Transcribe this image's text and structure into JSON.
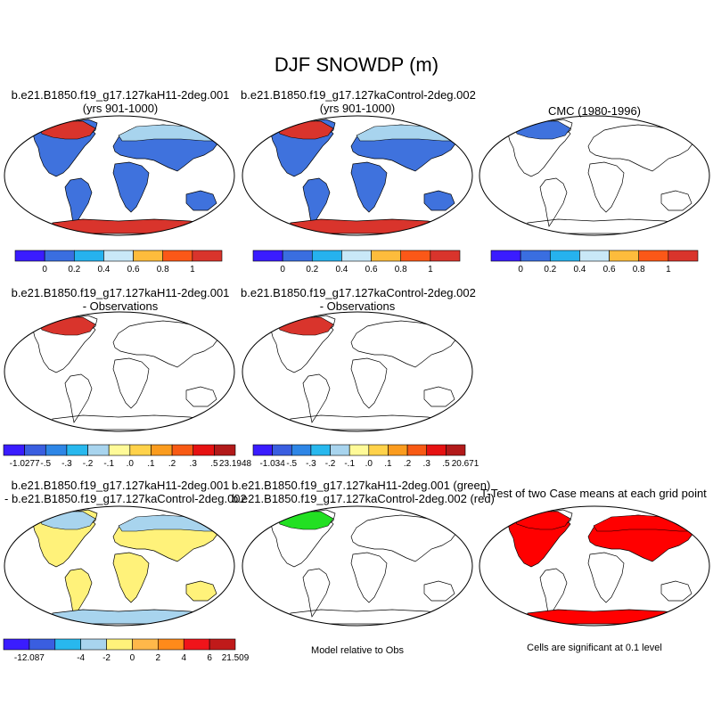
{
  "figure": {
    "title": "DJF SNOWDP (m)"
  },
  "palettes": {
    "mean": [
      "#3a1cff",
      "#3a6ee0",
      "#26b2ee",
      "#c9e8f7",
      "#fdbc3c",
      "#fb5818",
      "#d9342c"
    ],
    "diff": [
      "#3a1cff",
      "#3a5ee0",
      "#2e86e6",
      "#28b8ee",
      "#a8d4ee",
      "#fffa98",
      "#ffd24a",
      "#fb9c1e",
      "#f85a14",
      "#e61212",
      "#b21a1a"
    ],
    "diff3": [
      "#3a1cff",
      "#3a5ee0",
      "#28b8ee",
      "#a8d4ee",
      "#fff27a",
      "#ffb84a",
      "#ff8a1a",
      "#f0141a",
      "#c01a1a"
    ],
    "land": {
      "blue": "#3f72dd",
      "red": "#d9342c",
      "lightblue": "#a8d4ee",
      "yellow": "#fff27a",
      "green": "#22e022",
      "sigred": "#ff0000"
    }
  },
  "panels": [
    {
      "id": "p1",
      "title_lines": [
        "b.e21.B1850.f19_g17.127kaH11-2deg.001",
        "(yrs 901-1000)"
      ],
      "fill": "blue",
      "antarctica": "red",
      "greenland": "blue",
      "north_cap": "red"
    },
    {
      "id": "p2",
      "title_lines": [
        "b.e21.B1850.f19_g17.127kaControl-2deg.002",
        "(yrs 901-1000)"
      ],
      "fill": "blue",
      "antarctica": "red",
      "greenland": "blue",
      "north_cap": "red"
    },
    {
      "id": "p3",
      "title_lines": [
        "CMC (1980-1996)"
      ],
      "fill": "none",
      "antarctica": "none",
      "north_cap": "blue"
    },
    {
      "id": "p4",
      "title_lines": [
        "b.e21.B1850.f19_g17.127kaH11-2deg.001",
        "- Observations"
      ],
      "fill": "none",
      "north_cap": "red"
    },
    {
      "id": "p5",
      "title_lines": [
        "b.e21.B1850.f19_g17.127kaControl-2deg.002",
        "- Observations"
      ],
      "fill": "none",
      "north_cap": "red"
    },
    {
      "id": "p7",
      "title_lines": [
        "b.e21.B1850.f19_g17.127kaH11-2deg.001",
        "- b.e21.B1850.f19_g17.127kaControl-2deg.002"
      ],
      "fill": "yellow",
      "antarctica": "lightblue",
      "north_cap": "lightblue"
    },
    {
      "id": "p8",
      "title_lines": [
        "b.e21.B1850.f19_g17.127kaH11-2deg.001 (green)",
        "b.e21.B1850.f19_g17.127kaControl-2deg.002 (red)"
      ],
      "fill": "none",
      "north_cap": "green"
    },
    {
      "id": "p9",
      "title_lines": [
        "T-Test of two Case means at each grid point"
      ],
      "fill": "sigred-partial",
      "antarctica": "sigred",
      "north_cap": "sigred"
    }
  ],
  "colorbars": [
    {
      "id": "cb1",
      "palette": "mean",
      "labels": [
        "0",
        "0.2",
        "0.4",
        "0.6",
        "0.8",
        "1"
      ]
    },
    {
      "id": "cb2",
      "palette": "mean",
      "labels": [
        "0",
        "0.2",
        "0.4",
        "0.6",
        "0.8",
        "1"
      ]
    },
    {
      "id": "cb3",
      "palette": "mean",
      "labels": [
        "0",
        "0.2",
        "0.4",
        "0.6",
        "0.8",
        "1"
      ]
    },
    {
      "id": "cb4",
      "palette": "diff",
      "labels": [
        "-1.0277",
        "-.5",
        "-.3",
        "-.2",
        "-.1",
        ".0",
        ".1",
        ".2",
        ".3",
        ".5",
        "23.1948"
      ]
    },
    {
      "id": "cb5",
      "palette": "diff",
      "labels": [
        "-1.034",
        "-.5",
        "-.3",
        "-.2",
        "-.1",
        ".0",
        ".1",
        ".2",
        ".3",
        ".5",
        "20.671"
      ]
    },
    {
      "id": "cb7",
      "palette": "diff3",
      "labels": [
        "-12.087",
        "",
        "-4",
        "-2",
        "0",
        "2",
        "4",
        "6",
        "21.509"
      ]
    }
  ],
  "notes": {
    "model_rel_obs": "Model relative to Obs",
    "significance": "Cells are significant at 0.1 level"
  }
}
